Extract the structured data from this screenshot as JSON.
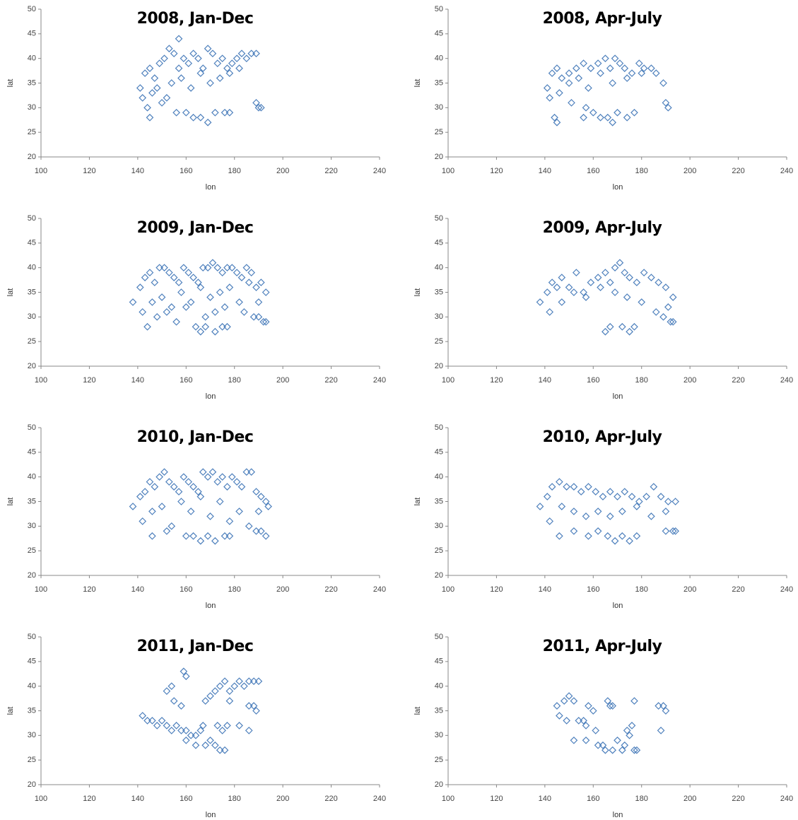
{
  "chart_data": [
    {
      "type": "scatter",
      "title": "2008, Jan-Dec",
      "x_label": "lon",
      "y_label": "lat",
      "color": "#4f81bd",
      "xlim": [
        100,
        240
      ],
      "ylim": [
        20,
        50
      ],
      "xticks": [
        100,
        120,
        140,
        160,
        180,
        200,
        220,
        240
      ],
      "yticks": [
        20,
        25,
        30,
        35,
        40,
        45,
        50
      ],
      "x": [
        141,
        143,
        145,
        147,
        149,
        151,
        153,
        155,
        157,
        159,
        161,
        163,
        165,
        167,
        169,
        171,
        173,
        175,
        177,
        179,
        181,
        183,
        185,
        187,
        189,
        142,
        146,
        150,
        154,
        158,
        162,
        166,
        170,
        174,
        178,
        182,
        144,
        148,
        152,
        156,
        160,
        163,
        166,
        169,
        172,
        176,
        178,
        189,
        190,
        191,
        145,
        157
      ],
      "y": [
        34,
        37,
        38,
        36,
        39,
        40,
        42,
        41,
        44,
        40,
        39,
        41,
        40,
        38,
        42,
        41,
        39,
        40,
        38,
        39,
        40,
        41,
        40,
        41,
        41,
        32,
        33,
        31,
        35,
        36,
        34,
        37,
        35,
        36,
        37,
        38,
        30,
        34,
        32,
        29,
        29,
        28,
        28,
        27,
        29,
        29,
        29,
        31,
        30,
        30,
        28,
        38
      ]
    },
    {
      "type": "scatter",
      "title": "2008, Apr-July",
      "x_label": "lon",
      "y_label": "lat",
      "color": "#4f81bd",
      "xlim": [
        100,
        240
      ],
      "ylim": [
        20,
        50
      ],
      "xticks": [
        100,
        120,
        140,
        160,
        180,
        200,
        220,
        240
      ],
      "yticks": [
        20,
        25,
        30,
        35,
        40,
        45,
        50
      ],
      "x": [
        141,
        143,
        145,
        147,
        150,
        153,
        156,
        159,
        162,
        165,
        167,
        169,
        171,
        173,
        176,
        179,
        181,
        184,
        186,
        142,
        146,
        150,
        154,
        158,
        163,
        168,
        174,
        180,
        144,
        151,
        157,
        160,
        163,
        166,
        168,
        170,
        174,
        177,
        189,
        190,
        191,
        145,
        156
      ],
      "y": [
        34,
        37,
        38,
        36,
        37,
        38,
        39,
        38,
        39,
        40,
        38,
        40,
        39,
        38,
        37,
        39,
        38,
        38,
        37,
        32,
        33,
        35,
        36,
        34,
        37,
        35,
        36,
        37,
        28,
        31,
        30,
        29,
        28,
        28,
        27,
        29,
        28,
        29,
        35,
        31,
        30,
        27,
        28
      ]
    },
    {
      "type": "scatter",
      "title": "2009, Jan-Dec",
      "x_label": "lon",
      "y_label": "lat",
      "color": "#4f81bd",
      "xlim": [
        100,
        240
      ],
      "ylim": [
        20,
        50
      ],
      "xticks": [
        100,
        120,
        140,
        160,
        180,
        200,
        220,
        240
      ],
      "yticks": [
        20,
        25,
        30,
        35,
        40,
        45,
        50
      ],
      "x": [
        138,
        141,
        143,
        145,
        147,
        149,
        151,
        153,
        155,
        157,
        159,
        161,
        163,
        165,
        167,
        169,
        171,
        173,
        175,
        177,
        179,
        181,
        183,
        185,
        187,
        189,
        191,
        193,
        142,
        146,
        150,
        154,
        158,
        162,
        166,
        170,
        174,
        178,
        182,
        186,
        190,
        144,
        148,
        152,
        156,
        160,
        168,
        172,
        176,
        184,
        164,
        166,
        168,
        172,
        175,
        177,
        188,
        190,
        192,
        193
      ],
      "y": [
        33,
        36,
        38,
        39,
        37,
        40,
        40,
        39,
        38,
        37,
        40,
        39,
        38,
        37,
        40,
        40,
        41,
        40,
        39,
        40,
        40,
        39,
        38,
        40,
        39,
        36,
        37,
        35,
        31,
        33,
        34,
        32,
        35,
        33,
        36,
        34,
        35,
        36,
        33,
        37,
        33,
        28,
        30,
        31,
        29,
        32,
        30,
        31,
        32,
        31,
        28,
        27,
        28,
        27,
        28,
        28,
        30,
        30,
        29,
        29
      ]
    },
    {
      "type": "scatter",
      "title": "2009, Apr-July",
      "x_label": "lon",
      "y_label": "lat",
      "color": "#4f81bd",
      "xlim": [
        100,
        240
      ],
      "ylim": [
        20,
        50
      ],
      "xticks": [
        100,
        120,
        140,
        160,
        180,
        200,
        220,
        240
      ],
      "yticks": [
        20,
        25,
        30,
        35,
        40,
        45,
        50
      ],
      "x": [
        138,
        141,
        143,
        145,
        147,
        150,
        153,
        156,
        159,
        162,
        165,
        167,
        169,
        171,
        173,
        175,
        178,
        181,
        184,
        187,
        190,
        193,
        142,
        147,
        152,
        157,
        163,
        169,
        174,
        180,
        186,
        191,
        165,
        167,
        172,
        175,
        177,
        189,
        192,
        193
      ],
      "y": [
        33,
        35,
        37,
        36,
        38,
        36,
        39,
        35,
        37,
        38,
        39,
        37,
        40,
        41,
        39,
        38,
        37,
        39,
        38,
        37,
        36,
        34,
        31,
        33,
        35,
        34,
        36,
        35,
        34,
        33,
        31,
        32,
        27,
        28,
        28,
        27,
        28,
        30,
        29,
        29
      ]
    },
    {
      "type": "scatter",
      "title": "2010, Jan-Dec",
      "x_label": "lon",
      "y_label": "lat",
      "color": "#4f81bd",
      "xlim": [
        100,
        240
      ],
      "ylim": [
        20,
        50
      ],
      "xticks": [
        100,
        120,
        140,
        160,
        180,
        200,
        220,
        240
      ],
      "yticks": [
        20,
        25,
        30,
        35,
        40,
        45,
        50
      ],
      "x": [
        138,
        141,
        143,
        145,
        147,
        149,
        151,
        153,
        155,
        157,
        159,
        161,
        163,
        165,
        167,
        169,
        171,
        173,
        175,
        177,
        179,
        181,
        183,
        185,
        187,
        189,
        191,
        193,
        194,
        142,
        146,
        150,
        154,
        158,
        162,
        166,
        170,
        174,
        178,
        182,
        186,
        190,
        146,
        152,
        160,
        163,
        166,
        169,
        172,
        176,
        178,
        189,
        191,
        193
      ],
      "y": [
        34,
        36,
        37,
        39,
        38,
        40,
        41,
        39,
        38,
        37,
        40,
        39,
        38,
        37,
        41,
        40,
        41,
        39,
        40,
        38,
        40,
        39,
        38,
        41,
        41,
        37,
        36,
        35,
        34,
        31,
        33,
        34,
        30,
        35,
        33,
        36,
        32,
        35,
        31,
        33,
        30,
        33,
        28,
        29,
        28,
        28,
        27,
        28,
        27,
        28,
        28,
        29,
        29,
        28
      ]
    },
    {
      "type": "scatter",
      "title": "2010, Apr-July",
      "x_label": "lon",
      "y_label": "lat",
      "color": "#4f81bd",
      "xlim": [
        100,
        240
      ],
      "ylim": [
        20,
        50
      ],
      "xticks": [
        100,
        120,
        140,
        160,
        180,
        200,
        220,
        240
      ],
      "yticks": [
        20,
        25,
        30,
        35,
        40,
        45,
        50
      ],
      "x": [
        138,
        141,
        143,
        146,
        149,
        152,
        155,
        158,
        161,
        164,
        167,
        170,
        173,
        176,
        179,
        182,
        185,
        188,
        191,
        194,
        142,
        147,
        152,
        157,
        162,
        167,
        172,
        178,
        184,
        190,
        146,
        152,
        158,
        162,
        166,
        169,
        172,
        175,
        178,
        190,
        193,
        194
      ],
      "y": [
        34,
        36,
        38,
        39,
        38,
        38,
        37,
        38,
        37,
        36,
        37,
        36,
        37,
        36,
        35,
        36,
        38,
        36,
        35,
        35,
        31,
        34,
        33,
        32,
        33,
        32,
        33,
        34,
        32,
        33,
        28,
        29,
        28,
        29,
        28,
        27,
        28,
        27,
        28,
        29,
        29,
        29
      ]
    },
    {
      "type": "scatter",
      "title": "2011, Jan-Dec",
      "x_label": "lon",
      "y_label": "lat",
      "color": "#4f81bd",
      "xlim": [
        100,
        240
      ],
      "ylim": [
        20,
        50
      ],
      "xticks": [
        100,
        120,
        140,
        160,
        180,
        200,
        220,
        240
      ],
      "yticks": [
        20,
        25,
        30,
        35,
        40,
        45,
        50
      ],
      "x": [
        142,
        144,
        146,
        148,
        150,
        152,
        154,
        156,
        158,
        160,
        162,
        164,
        166,
        168,
        170,
        172,
        174,
        176,
        152,
        154,
        159,
        160,
        155,
        158,
        168,
        170,
        172,
        174,
        176,
        178,
        180,
        182,
        184,
        186,
        188,
        190,
        175,
        177,
        186,
        188,
        189,
        160,
        164,
        167,
        173,
        178,
        182,
        186
      ],
      "y": [
        34,
        33,
        33,
        32,
        33,
        32,
        31,
        32,
        31,
        31,
        30,
        30,
        31,
        28,
        29,
        28,
        27,
        27,
        39,
        40,
        43,
        42,
        37,
        36,
        37,
        38,
        39,
        40,
        41,
        39,
        40,
        41,
        40,
        41,
        41,
        41,
        31,
        32,
        36,
        36,
        35,
        29,
        28,
        32,
        32,
        37,
        32,
        31
      ]
    },
    {
      "type": "scatter",
      "title": "2011, Apr-July",
      "x_label": "lon",
      "y_label": "lat",
      "color": "#4f81bd",
      "xlim": [
        100,
        240
      ],
      "ylim": [
        20,
        50
      ],
      "xticks": [
        100,
        120,
        140,
        160,
        180,
        200,
        220,
        240
      ],
      "yticks": [
        20,
        25,
        30,
        35,
        40,
        45,
        50
      ],
      "x": [
        145,
        146,
        148,
        150,
        152,
        154,
        156,
        157,
        158,
        160,
        161,
        162,
        164,
        166,
        167,
        168,
        170,
        172,
        174,
        176,
        177,
        178,
        187,
        188,
        189,
        190,
        149,
        152,
        157,
        165,
        168,
        173,
        175,
        177
      ],
      "y": [
        36,
        34,
        37,
        38,
        37,
        33,
        33,
        29,
        36,
        35,
        31,
        28,
        28,
        37,
        36,
        27,
        29,
        27,
        31,
        32,
        27,
        27,
        36,
        31,
        36,
        35,
        33,
        29,
        32,
        27,
        36,
        28,
        30,
        37
      ]
    }
  ]
}
